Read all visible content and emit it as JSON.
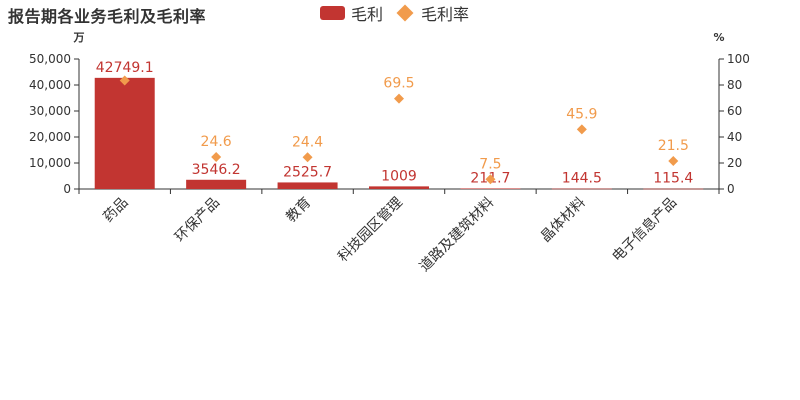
{
  "title": "报告期各业务毛利及毛利率",
  "legend": [
    {
      "label": "毛利",
      "color": "#c23531",
      "kind": "bar"
    },
    {
      "label": "毛利率",
      "color": "#f19b4c",
      "kind": "diamond"
    }
  ],
  "chart_data": {
    "type": "bar",
    "categories": [
      "药品",
      "环保产品",
      "教育",
      "科技园区管理",
      "道路及建筑材料",
      "晶体材料",
      "电子信息产品"
    ],
    "series": [
      {
        "name": "毛利",
        "values": [
          42749.1,
          3546.2,
          2525.7,
          1009,
          211.7,
          144.5,
          115.4
        ],
        "labels": [
          "42749.1",
          "3546.2",
          "2525.7",
          "1009",
          "211.7",
          "144.5",
          "115.4"
        ],
        "color": "#c23531",
        "axis": "left"
      },
      {
        "name": "毛利率",
        "values": [
          83.5,
          24.6,
          24.4,
          69.5,
          7.5,
          45.9,
          21.5
        ],
        "labels": [
          "",
          "24.6",
          "24.4",
          "69.5",
          "7.5",
          "45.9",
          "21.5"
        ],
        "color": "#f19b4c",
        "axis": "right"
      }
    ],
    "y_left": {
      "unit": "万",
      "ylim": [
        0,
        50000
      ],
      "ticks": [
        "0",
        "10,000",
        "20,000",
        "30,000",
        "40,000",
        "50,000"
      ]
    },
    "y_right": {
      "unit": "%",
      "ylim": [
        0,
        100
      ],
      "ticks": [
        "0",
        "20",
        "40",
        "60",
        "80",
        "100"
      ]
    },
    "grid": false,
    "legend_position": "top-center"
  }
}
